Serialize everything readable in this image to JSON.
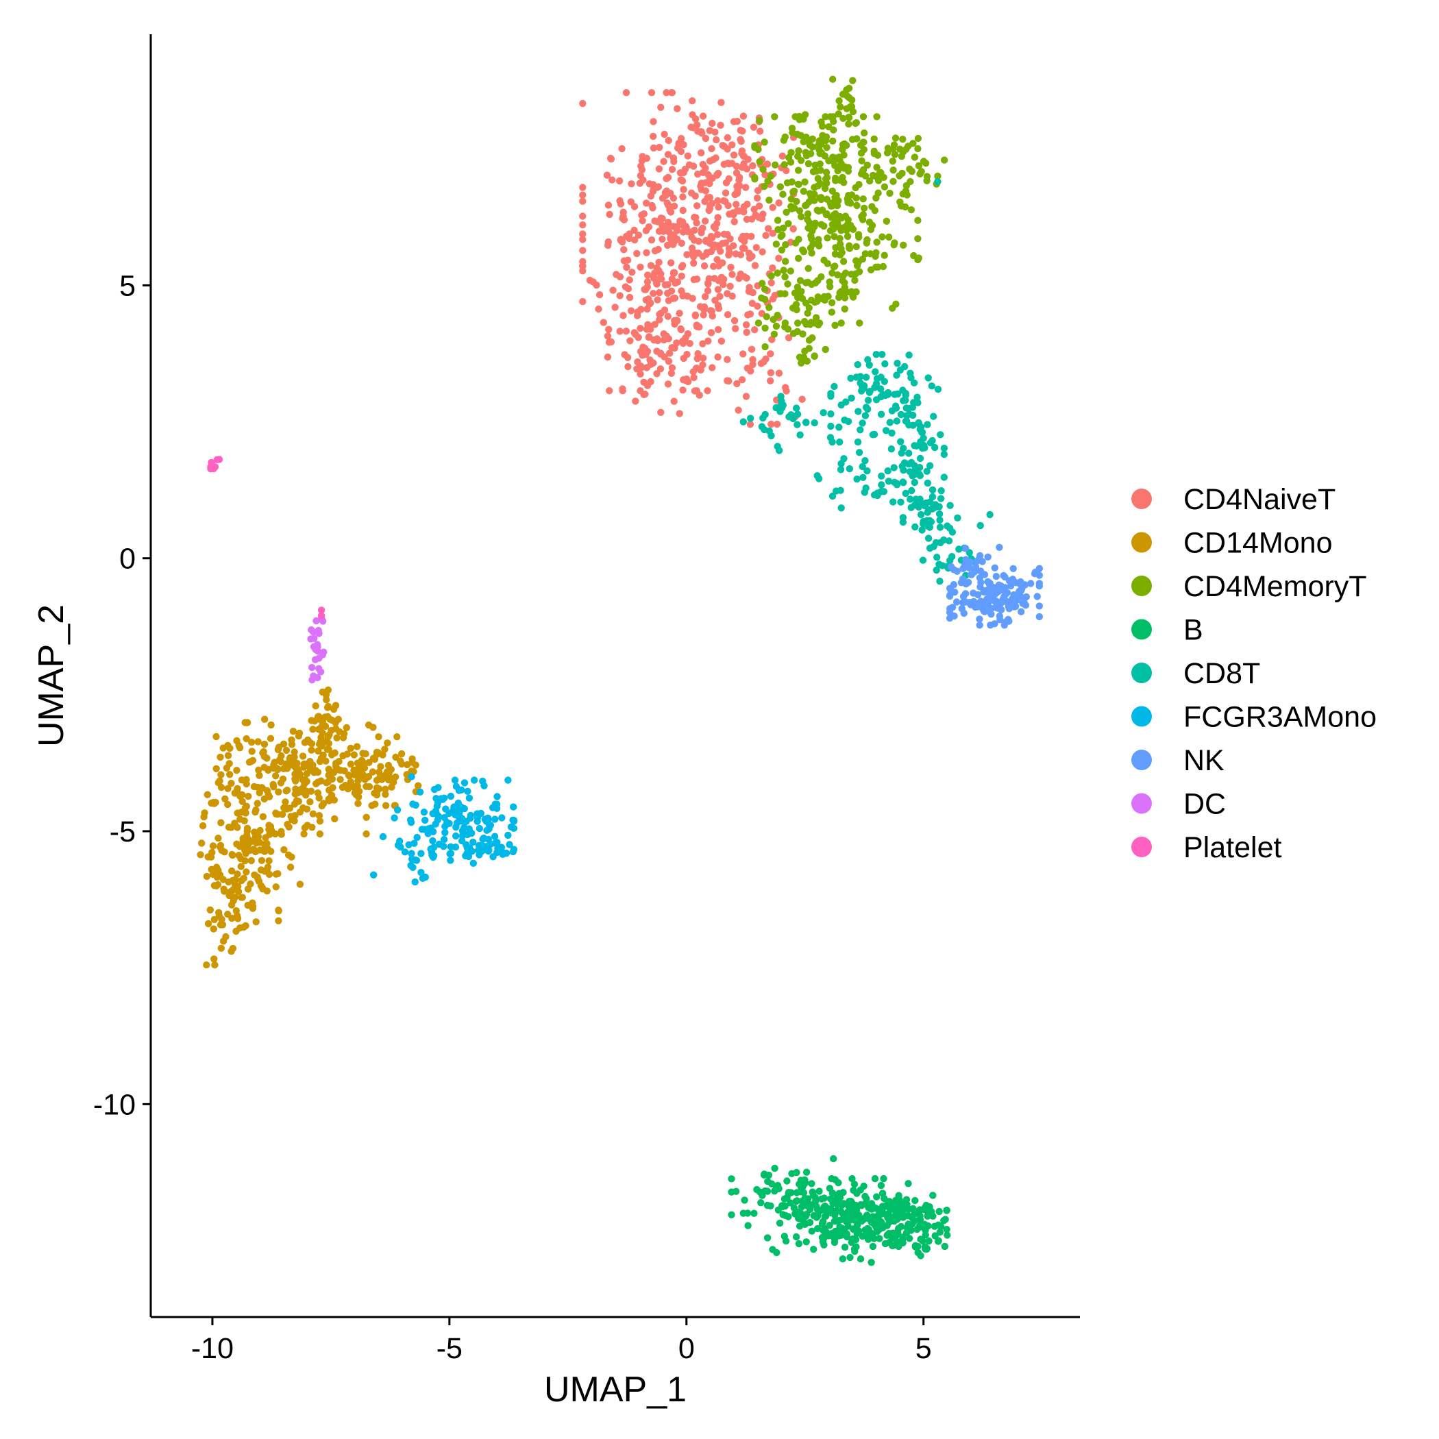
{
  "chart_data": {
    "type": "scatter",
    "title": "",
    "xlabel": "UMAP_1",
    "ylabel": "UMAP_2",
    "xlim": [
      -11.3,
      8.3
    ],
    "ylim": [
      -13.9,
      9.6
    ],
    "xticks": [
      -10,
      -5,
      0,
      5
    ],
    "xtick_labels": [
      "-10",
      "-5",
      "0",
      "5"
    ],
    "yticks": [
      5,
      0,
      -5,
      -10
    ],
    "ytick_labels": [
      "5",
      "0",
      "-5",
      "-10"
    ],
    "grid": false,
    "legend_position": "right",
    "series": [
      {
        "name": "CD4NaiveT",
        "color": "#F8766D",
        "clusters": [
          {
            "cx": -0.3,
            "cy": 5.8,
            "sx": 0.9,
            "sy": 1.3,
            "n": 380
          },
          {
            "cx": 1.2,
            "cy": 6.0,
            "sx": 0.6,
            "sy": 1.0,
            "n": 100
          },
          {
            "cx": -0.4,
            "cy": 3.7,
            "sx": 0.6,
            "sy": 0.5,
            "n": 80
          },
          {
            "cx": 1.0,
            "cy": 7.3,
            "sx": 0.6,
            "sy": 0.4,
            "n": 60
          },
          {
            "cx": 1.6,
            "cy": 3.2,
            "sx": 0.4,
            "sy": 0.4,
            "n": 25
          }
        ],
        "points": [
          [
            -1.2,
            5.1
          ],
          [
            1.0,
            8.0
          ],
          [
            1.9,
            2.9
          ],
          [
            -0.9,
            3.0
          ]
        ]
      },
      {
        "name": "CD14Mono",
        "color": "#CD9600",
        "clusters": [
          {
            "cx": -9.2,
            "cy": -4.9,
            "sx": 0.5,
            "sy": 0.9,
            "n": 180
          },
          {
            "cx": -8.0,
            "cy": -4.0,
            "sx": 0.7,
            "sy": 0.5,
            "n": 200
          },
          {
            "cx": -9.6,
            "cy": -6.4,
            "sx": 0.25,
            "sy": 0.5,
            "n": 50
          },
          {
            "cx": -6.6,
            "cy": -3.9,
            "sx": 0.45,
            "sy": 0.3,
            "n": 90
          },
          {
            "cx": -7.6,
            "cy": -2.9,
            "sx": 0.2,
            "sy": 0.3,
            "n": 25
          }
        ],
        "points": [
          [
            -10.2,
            -4.9
          ],
          [
            -9.6,
            -7.2
          ],
          [
            -7.6,
            -2.5
          ],
          [
            -6.6,
            -5.8
          ],
          [
            -5.8,
            -3.9
          ]
        ]
      },
      {
        "name": "CD4MemoryT",
        "color": "#7CAE00",
        "clusters": [
          {
            "cx": 3.2,
            "cy": 6.2,
            "sx": 0.8,
            "sy": 0.9,
            "n": 300
          },
          {
            "cx": 2.7,
            "cy": 7.3,
            "sx": 0.6,
            "sy": 0.4,
            "n": 80
          },
          {
            "cx": 2.5,
            "cy": 4.4,
            "sx": 0.4,
            "sy": 0.4,
            "n": 50
          },
          {
            "cx": 4.6,
            "cy": 7.2,
            "sx": 0.4,
            "sy": 0.3,
            "n": 30
          },
          {
            "cx": 3.4,
            "cy": 8.3,
            "sx": 0.15,
            "sy": 0.3,
            "n": 15
          }
        ],
        "points": [
          [
            3.3,
            8.5
          ],
          [
            5.3,
            7.0
          ],
          [
            2.7,
            3.7
          ],
          [
            4.9,
            5.5
          ]
        ]
      },
      {
        "name": "B",
        "color": "#00BE67",
        "clusters": [
          {
            "cx": 3.6,
            "cy": -12.1,
            "sx": 0.9,
            "sy": 0.35,
            "n": 300
          },
          {
            "cx": 2.0,
            "cy": -11.7,
            "sx": 0.5,
            "sy": 0.25,
            "n": 60
          },
          {
            "cx": 4.8,
            "cy": -12.3,
            "sx": 0.4,
            "sy": 0.3,
            "n": 40
          }
        ],
        "points": [
          [
            1.2,
            -12.0
          ],
          [
            5.5,
            -12.4
          ],
          [
            3.1,
            -11.0
          ],
          [
            3.9,
            -12.9
          ]
        ]
      },
      {
        "name": "CD8T",
        "color": "#00BFA5",
        "clusters": [
          {
            "cx": 4.2,
            "cy": 3.0,
            "sx": 0.55,
            "sy": 0.35,
            "n": 80
          },
          {
            "cx": 4.7,
            "cy": 1.8,
            "sx": 0.35,
            "sy": 0.5,
            "n": 70
          },
          {
            "cx": 5.2,
            "cy": 0.7,
            "sx": 0.3,
            "sy": 0.4,
            "n": 50
          },
          {
            "cx": 2.4,
            "cy": 2.5,
            "sx": 0.5,
            "sy": 0.25,
            "n": 30
          },
          {
            "cx": 3.6,
            "cy": 1.5,
            "sx": 0.4,
            "sy": 0.3,
            "n": 25
          },
          {
            "cx": 5.8,
            "cy": 0.0,
            "sx": 0.25,
            "sy": 0.2,
            "n": 15
          }
        ],
        "points": [
          [
            5.3,
            6.9
          ],
          [
            6.2,
            0.6
          ],
          [
            6.4,
            0.8
          ],
          [
            1.2,
            2.5
          ],
          [
            5.0,
            2.2
          ]
        ]
      },
      {
        "name": "FCGR3AMono",
        "color": "#00B8E7",
        "clusters": [
          {
            "cx": -4.9,
            "cy": -4.8,
            "sx": 0.6,
            "sy": 0.35,
            "n": 120
          },
          {
            "cx": -4.1,
            "cy": -5.2,
            "sx": 0.25,
            "sy": 0.2,
            "n": 30
          },
          {
            "cx": -5.6,
            "cy": -5.3,
            "sx": 0.3,
            "sy": 0.3,
            "n": 25
          }
        ],
        "points": [
          [
            -6.6,
            -5.8
          ],
          [
            -5.8,
            -4.0
          ],
          [
            -3.8,
            -5.4
          ],
          [
            -6.4,
            -5.1
          ]
        ]
      },
      {
        "name": "NK",
        "color": "#619CFF",
        "clusters": [
          {
            "cx": 6.5,
            "cy": -0.7,
            "sx": 0.45,
            "sy": 0.25,
            "n": 150
          },
          {
            "cx": 6.0,
            "cy": -0.1,
            "sx": 0.2,
            "sy": 0.2,
            "n": 20
          }
        ],
        "points": [
          [
            6.6,
            0.2
          ],
          [
            5.7,
            -0.8
          ],
          [
            7.4,
            -0.7
          ],
          [
            6.5,
            -1.2
          ]
        ]
      },
      {
        "name": "DC",
        "color": "#DB72FB",
        "clusters": [
          {
            "cx": -7.8,
            "cy": -1.55,
            "sx": 0.07,
            "sy": 0.35,
            "n": 22
          }
        ],
        "points": [
          [
            -7.9,
            -2.0
          ],
          [
            -7.7,
            -1.1
          ]
        ]
      },
      {
        "name": "Platelet",
        "color": "#FF61C3",
        "clusters": [
          {
            "cx": -9.98,
            "cy": 1.75,
            "sx": 0.06,
            "sy": 0.06,
            "n": 8
          }
        ],
        "points": [
          [
            -7.7,
            -0.95
          ],
          [
            -7.7,
            -1.05
          ]
        ]
      }
    ]
  }
}
